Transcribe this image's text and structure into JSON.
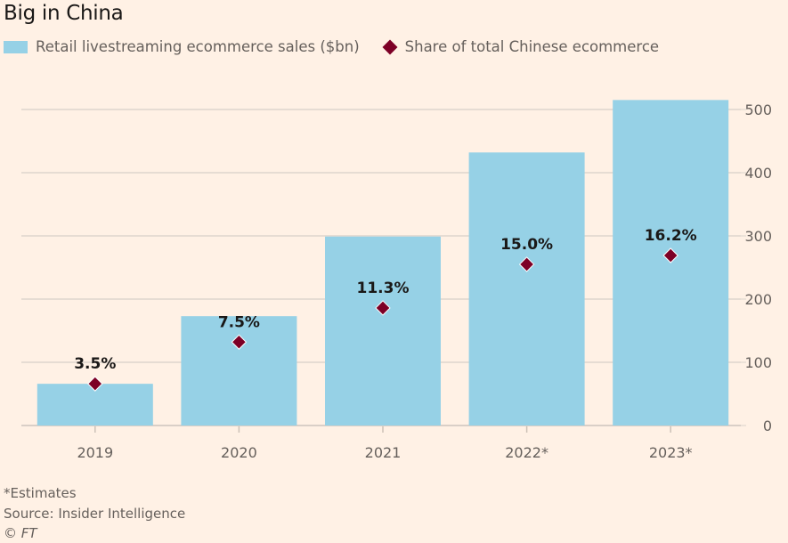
{
  "title": "Big in China",
  "legend": {
    "bars_label": "Retail livestreaming ecommerce sales ($bn)",
    "markers_label": "Share of total Chinese ecommerce"
  },
  "colors": {
    "background": "#fff1e5",
    "bar": "#96d1e6",
    "marker": "#7d0026",
    "grid": "#e6dcd3",
    "axis_text": "#66605c",
    "label_text": "#1a1817"
  },
  "chart_data": {
    "type": "bar",
    "title": "Big in China",
    "categories": [
      "2019",
      "2020",
      "2021",
      "2022*",
      "2023*"
    ],
    "series": [
      {
        "name": "Retail livestreaming ecommerce sales ($bn)",
        "type": "bar",
        "values": [
          66,
          173,
          299,
          432,
          515
        ]
      },
      {
        "name": "Share of total Chinese ecommerce",
        "type": "scatter",
        "marker": "diamond",
        "values": [
          3.5,
          7.5,
          11.3,
          15.0,
          16.2
        ],
        "labels": [
          "3.5%",
          "7.5%",
          "11.3%",
          "15.0%",
          "16.2%"
        ],
        "plotted_on_sales_axis": [
          66,
          132,
          186,
          255,
          269
        ]
      }
    ],
    "xlabel": "",
    "ylabel": "",
    "ylim": [
      0,
      500
    ],
    "yticks": [
      0,
      100,
      200,
      300,
      400,
      500
    ],
    "yaxis_position": "right",
    "grid": true,
    "legend_position": "top-left"
  },
  "footer": {
    "note": "*Estimates",
    "source": "Source: Insider Intelligence",
    "copyright": "© FT"
  }
}
